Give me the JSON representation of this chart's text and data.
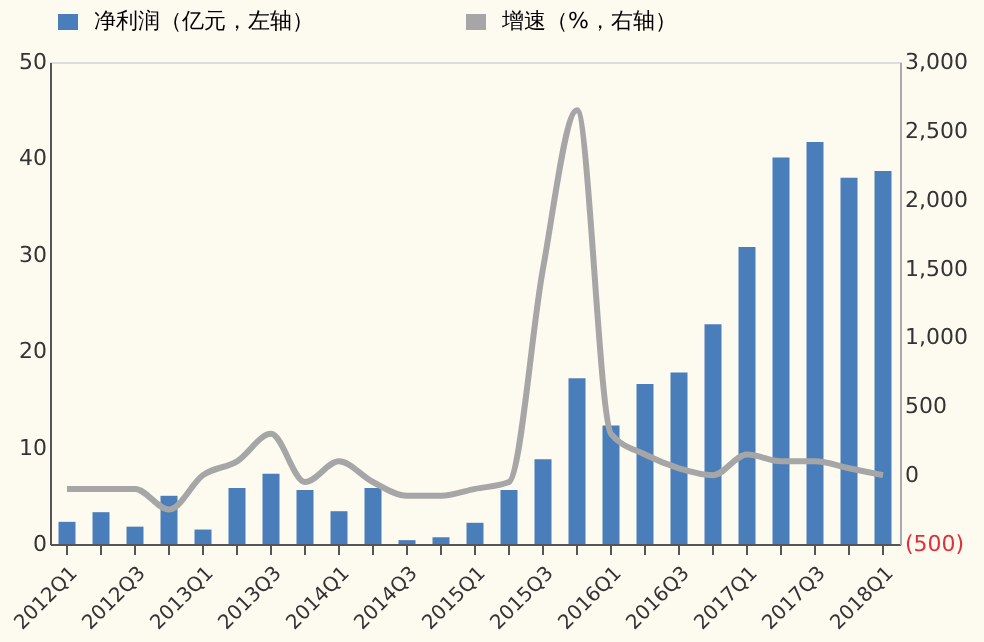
{
  "chart_data": {
    "type": "bar",
    "categories": [
      "2012Q1",
      null,
      "2012Q3",
      null,
      "2013Q1",
      null,
      "2013Q3",
      null,
      "2014Q1",
      null,
      "2014Q3",
      null,
      "2015Q1",
      null,
      "2015Q3",
      null,
      "2016Q1",
      null,
      "2016Q3",
      null,
      "2017Q1",
      null,
      "2017Q3",
      null,
      "2018Q1"
    ],
    "series": [
      {
        "name": "净利润（亿元，左轴）",
        "color": "#4a7ebb",
        "values": [
          2.3,
          3.3,
          1.8,
          5.0,
          1.5,
          5.8,
          7.3,
          5.6,
          3.4,
          5.8,
          0.4,
          0.7,
          2.2,
          5.6,
          8.8,
          17.2,
          12.3,
          16.6,
          17.8,
          22.8,
          30.8,
          40.1,
          41.7,
          38.0,
          38.7
        ]
      },
      {
        "name": "增速（%，右轴）",
        "type": "line",
        "axis": "y2",
        "color": "#a6a6a6",
        "values": [
          -100,
          -100,
          -100,
          -250,
          0,
          100,
          300,
          -50,
          100,
          -50,
          -150,
          -150,
          -100,
          -50,
          1500,
          2650,
          300,
          150,
          50,
          0,
          150,
          100,
          100,
          50,
          0
        ]
      }
    ],
    "ylim": [
      0,
      50
    ],
    "yticks": [
      0,
      10,
      20,
      30,
      40,
      50
    ],
    "y2lim": [
      -500,
      3000
    ],
    "y2ticks": [
      {
        "value": -500,
        "label": "(500)"
      },
      0,
      500,
      {
        "value": 1000,
        "label": "1,000"
      },
      {
        "value": 1500,
        "label": "1,500"
      },
      {
        "value": 2000,
        "label": "2,000"
      },
      {
        "value": 2500,
        "label": "2,500"
      },
      {
        "value": 3000,
        "label": "3,000"
      }
    ],
    "grid": false,
    "legend": "top",
    "line_style": "solid",
    "marker": "none"
  }
}
